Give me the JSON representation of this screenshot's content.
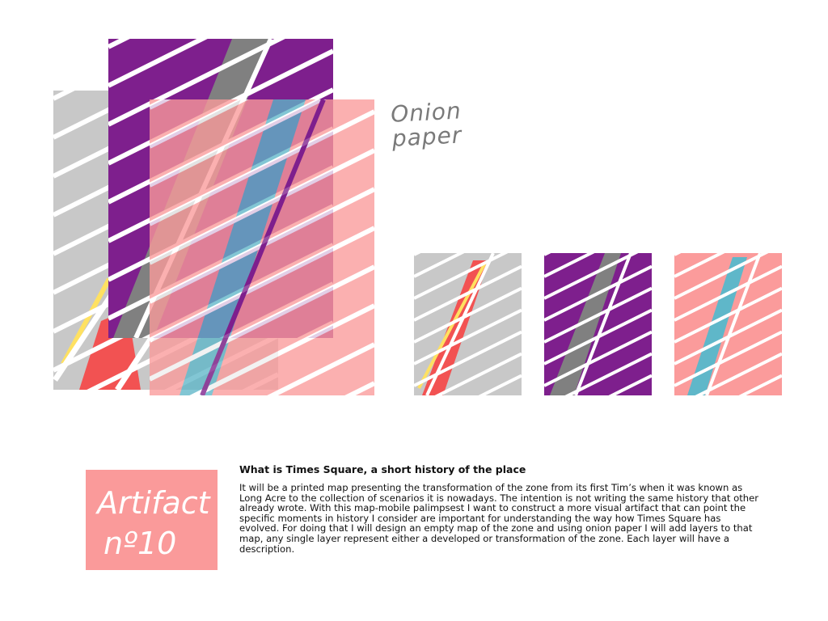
{
  "annotation": {
    "line1": "Onion",
    "line2": "paper"
  },
  "badge": {
    "line1": "Artifact",
    "line2": "nº10"
  },
  "description": {
    "title": "What is Times Square, a short history of the place",
    "body": "It will be a printed map presenting the transformation of the zone from its first Tim’s when it was known as Long Acre to the collection of scenarios it is nowadays. The intention is not writing the same history that other already wrote. With this map-mobile palimpsest I want to construct a more visual artifact that can point the specific moments in history I consider are important for understanding the way how Times Square has evolved. For doing that I will design an empty map of the zone and using onion paper I will add layers to that map, any single layer represent either a developed or transformation of the zone. Each layer will have a description."
  },
  "colors": {
    "gray": "#c8c8c8",
    "purple": "#7e1f8d",
    "pink": "#fb9b9b",
    "red": "#f25252",
    "yellow": "#ffe161",
    "blue": "#5fb7c9",
    "dark_gray": "#808080"
  }
}
